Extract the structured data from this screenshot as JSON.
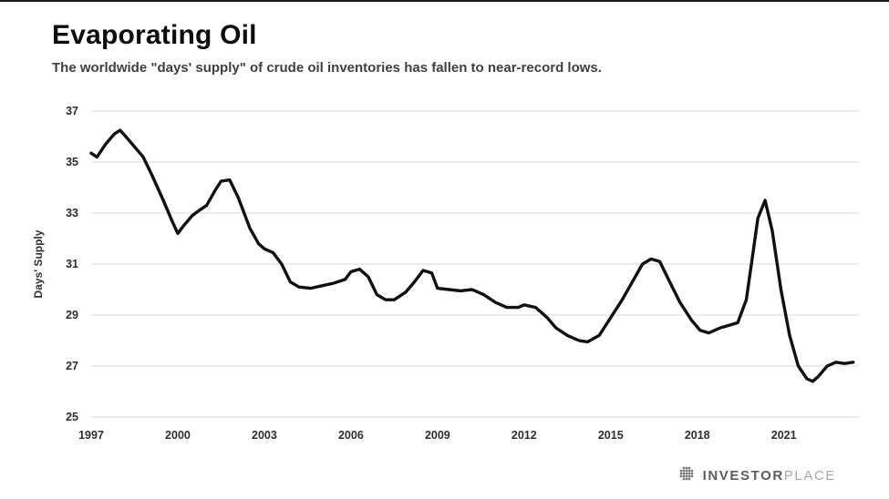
{
  "header": {
    "title": "Evaporating Oil",
    "subtitle": "The worldwide \"days' supply\" of crude oil inventories has fallen to near-record lows."
  },
  "chart_data": {
    "type": "line",
    "title": "Evaporating Oil",
    "subtitle": "The worldwide \"days' supply\" of crude oil inventories has fallen to near-record lows.",
    "xlabel": "",
    "ylabel": "Days' Supply",
    "xlim": [
      1997,
      2023.6
    ],
    "ylim": [
      25,
      37
    ],
    "yticks": [
      25,
      27,
      29,
      31,
      33,
      35,
      37
    ],
    "xticks": [
      1997,
      2000,
      2003,
      2006,
      2009,
      2012,
      2015,
      2018,
      2021
    ],
    "grid": true,
    "legend": "none",
    "line_color": "#111111",
    "grid_color": "#d9d9d9",
    "series": [
      {
        "name": "Days' Supply",
        "x": [
          1997.0,
          1997.2,
          1997.5,
          1997.8,
          1998.0,
          1998.2,
          1998.5,
          1998.8,
          1999.1,
          1999.5,
          1999.8,
          2000.0,
          2000.2,
          2000.5,
          2000.8,
          2001.0,
          2001.3,
          2001.5,
          2001.8,
          2002.1,
          2002.5,
          2002.8,
          2003.0,
          2003.3,
          2003.6,
          2003.9,
          2004.2,
          2004.6,
          2005.0,
          2005.4,
          2005.8,
          2006.0,
          2006.3,
          2006.6,
          2006.9,
          2007.2,
          2007.5,
          2007.9,
          2008.2,
          2008.5,
          2008.8,
          2009.0,
          2009.4,
          2009.8,
          2010.2,
          2010.6,
          2011.0,
          2011.4,
          2011.8,
          2012.0,
          2012.4,
          2012.8,
          2013.1,
          2013.5,
          2013.9,
          2014.2,
          2014.6,
          2015.0,
          2015.4,
          2015.8,
          2016.1,
          2016.4,
          2016.7,
          2017.0,
          2017.4,
          2017.8,
          2018.1,
          2018.4,
          2018.8,
          2019.1,
          2019.4,
          2019.7,
          2019.9,
          2020.1,
          2020.35,
          2020.6,
          2020.9,
          2021.2,
          2021.5,
          2021.8,
          2022.0,
          2022.2,
          2022.5,
          2022.8,
          2023.1,
          2023.4
        ],
        "y": [
          35.35,
          35.2,
          35.7,
          36.1,
          36.25,
          36.0,
          35.6,
          35.2,
          34.5,
          33.5,
          32.7,
          32.2,
          32.5,
          32.9,
          33.15,
          33.3,
          33.9,
          34.25,
          34.3,
          33.6,
          32.4,
          31.8,
          31.6,
          31.45,
          31.0,
          30.3,
          30.1,
          30.05,
          30.15,
          30.25,
          30.4,
          30.7,
          30.8,
          30.5,
          29.8,
          29.6,
          29.6,
          29.9,
          30.3,
          30.75,
          30.65,
          30.05,
          30.0,
          29.95,
          30.0,
          29.8,
          29.5,
          29.3,
          29.3,
          29.4,
          29.3,
          28.9,
          28.5,
          28.2,
          28.0,
          27.95,
          28.2,
          28.9,
          29.6,
          30.4,
          31.0,
          31.2,
          31.1,
          30.4,
          29.5,
          28.8,
          28.4,
          28.3,
          28.5,
          28.6,
          28.7,
          29.6,
          31.2,
          32.8,
          33.5,
          32.3,
          30.0,
          28.2,
          27.0,
          26.5,
          26.4,
          26.6,
          27.0,
          27.15,
          27.1,
          27.15
        ]
      }
    ]
  },
  "footer": {
    "brand_left": "INVESTOR",
    "brand_right": "PLACE"
  }
}
